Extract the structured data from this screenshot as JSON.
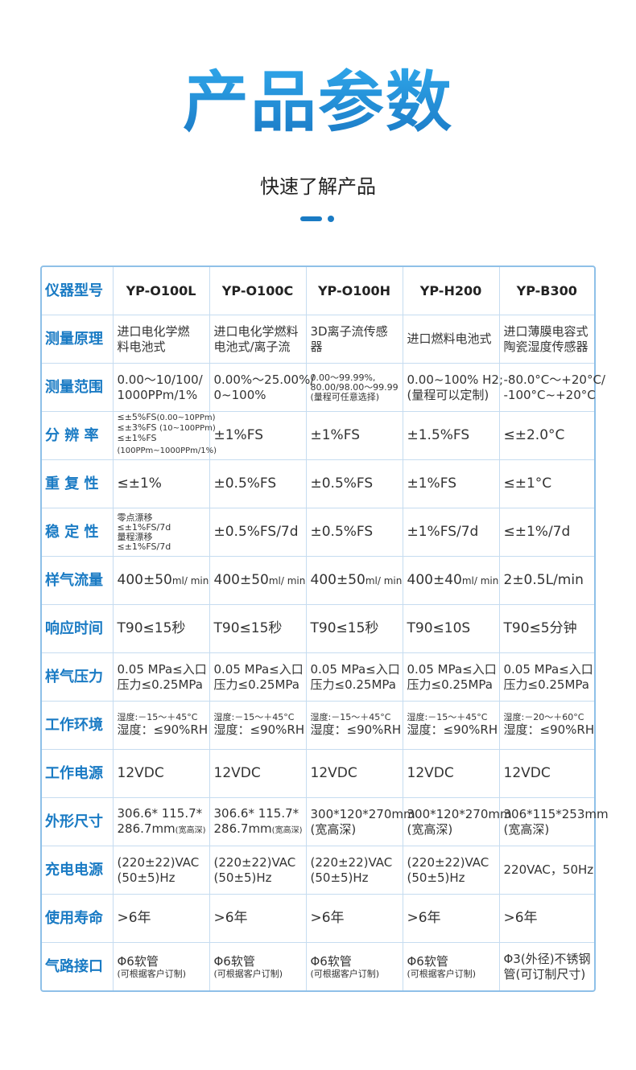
{
  "header": {
    "title": "产品参数",
    "subtitle": "快速了解产品"
  },
  "colors": {
    "accent": "#1a7bc4",
    "border": "#8fc0e8",
    "grid": "#c6dcf0"
  },
  "table": {
    "corner_label": "仪器型号",
    "models": [
      "YP-O100L",
      "YP-O100C",
      "YP-O100H",
      "YP-H200",
      "YP-B300"
    ],
    "rows": [
      {
        "label": "测量原理",
        "cells": [
          [
            [
              "进口电化学燃"
            ],
            [
              "料电池式"
            ]
          ],
          [
            [
              "进口电化学燃料"
            ],
            [
              "电池式/离子流"
            ]
          ],
          [
            [
              "3D离子流传感"
            ],
            [
              "器"
            ]
          ],
          [
            [
              "进口燃料电池式"
            ]
          ],
          [
            [
              "进口薄膜电容式"
            ],
            [
              "陶瓷湿度传感器"
            ]
          ]
        ]
      },
      {
        "label": "测量范围",
        "cells": [
          [
            [
              "0.00～10/100/"
            ],
            [
              "1000PPm/1%"
            ]
          ],
          [
            [
              "0.00%～25.00%/"
            ],
            [
              "0~100%"
            ]
          ],
          [
            [
              "0.00～99.99%,",
              "",
              "xs"
            ],
            [
              "80.00/98.00～99.99",
              "",
              "xs"
            ],
            [
              "(量程可任意选择)",
              "",
              "xs"
            ]
          ],
          [
            [
              "0.00~100% H2;"
            ],
            [
              "(量程可以定制)"
            ]
          ],
          [
            [
              "-80.0°C～+20°C/"
            ],
            [
              "-100°C~+20°C"
            ]
          ]
        ]
      },
      {
        "label": "分 辨 率",
        "cells": [
          [
            [
              "≤±5%FS",
              "(0.00~10PPm)",
              "xs"
            ],
            [
              "≤±3%FS ",
              "(10~100PPm)",
              "xs"
            ],
            [
              "≤±1%FS",
              "",
              "xs"
            ],
            [
              "(100PPm~1000PPm/1%)",
              "",
              "sm"
            ]
          ],
          [
            [
              "±1%FS",
              "",
              "big"
            ]
          ],
          [
            [
              "±1%FS",
              "",
              "big"
            ]
          ],
          [
            [
              "±1.5%FS",
              "",
              "big"
            ]
          ],
          [
            [
              "≤±2.0°C",
              "",
              "big"
            ]
          ]
        ]
      },
      {
        "label": "重 复 性",
        "cells": [
          [
            [
              "≤±1%",
              "",
              "big"
            ]
          ],
          [
            [
              "±0.5%FS",
              "",
              "big"
            ]
          ],
          [
            [
              "±0.5%FS",
              "",
              "big"
            ]
          ],
          [
            [
              "±1%FS",
              "",
              "big"
            ]
          ],
          [
            [
              "≤±1°C",
              "",
              "big"
            ]
          ]
        ]
      },
      {
        "label": "稳 定 性",
        "cells": [
          [
            [
              "零点漂移",
              "",
              "xs"
            ],
            [
              "≤±1%FS/7d",
              "",
              "xs"
            ],
            [
              "量程漂移",
              "",
              "xs"
            ],
            [
              "≤±1%FS/7d",
              "",
              "xs"
            ]
          ],
          [
            [
              "±0.5%FS/7d",
              "",
              "big"
            ]
          ],
          [
            [
              "±0.5%FS",
              "",
              "big"
            ]
          ],
          [
            [
              "±1%FS/7d",
              "",
              "big"
            ]
          ],
          [
            [
              "≤±1%/7d",
              "",
              "big"
            ]
          ]
        ]
      },
      {
        "label": "样气流量",
        "cells": [
          [
            [
              "400±50",
              "ml/ min",
              "big"
            ]
          ],
          [
            [
              "400±50",
              "ml/ min",
              "big"
            ]
          ],
          [
            [
              "400±50",
              "ml/ min",
              "big"
            ]
          ],
          [
            [
              "400±40",
              "ml/ min",
              "big"
            ]
          ],
          [
            [
              "2±0.5L/min",
              "",
              "big"
            ]
          ]
        ]
      },
      {
        "label": "响应时间",
        "cells": [
          [
            [
              "T90≤15秒",
              "",
              "big"
            ]
          ],
          [
            [
              "T90≤15秒",
              "",
              "big"
            ]
          ],
          [
            [
              "T90≤15秒",
              "",
              "big"
            ]
          ],
          [
            [
              "T90≤10S",
              "",
              "big"
            ]
          ],
          [
            [
              "T90≤5分钟",
              "",
              "big"
            ]
          ]
        ]
      },
      {
        "label": "样气压力",
        "cells": [
          [
            [
              "0.05 MPa≤入口"
            ],
            [
              "压力≤0.25MPa"
            ]
          ],
          [
            [
              "0.05 MPa≤入口"
            ],
            [
              "压力≤0.25MPa"
            ]
          ],
          [
            [
              "0.05 MPa≤入口"
            ],
            [
              "压力≤0.25MPa"
            ]
          ],
          [
            [
              "0.05 MPa≤入口"
            ],
            [
              "压力≤0.25MPa"
            ]
          ],
          [
            [
              "0.05 MPa≤入口"
            ],
            [
              "压力≤0.25MPa"
            ]
          ]
        ]
      },
      {
        "label": "工作环境",
        "cells": [
          [
            [
              "湿度:－15～＋45°C",
              "",
              "xs"
            ],
            [
              "湿度：≤90%RH"
            ]
          ],
          [
            [
              "湿度:－15～＋45°C",
              "",
              "xs"
            ],
            [
              "湿度：≤90%RH"
            ]
          ],
          [
            [
              "湿度:－15～＋45°C",
              "",
              "xs"
            ],
            [
              "湿度：≤90%RH"
            ]
          ],
          [
            [
              "湿度:－15～＋45°C",
              "",
              "xs"
            ],
            [
              "湿度：≤90%RH"
            ]
          ],
          [
            [
              "湿度:－20～＋60°C",
              "",
              "xs"
            ],
            [
              "湿度：≤90%RH"
            ]
          ]
        ]
      },
      {
        "label": "工作电源",
        "cells": [
          [
            [
              "12VDC",
              "",
              "big"
            ]
          ],
          [
            [
              "12VDC",
              "",
              "big"
            ]
          ],
          [
            [
              "12VDC",
              "",
              "big"
            ]
          ],
          [
            [
              "12VDC",
              "",
              "big"
            ]
          ],
          [
            [
              "12VDC",
              "",
              "big"
            ]
          ]
        ]
      },
      {
        "label": "外形尺寸",
        "cells": [
          [
            [
              "306.6* 115.7*"
            ],
            [
              "286.7mm",
              "(宽高深)"
            ]
          ],
          [
            [
              "306.6* 115.7*"
            ],
            [
              "286.7mm",
              "(宽高深)"
            ]
          ],
          [
            [
              "300*120*270mm"
            ],
            [
              "(宽高深)"
            ]
          ],
          [
            [
              "300*120*270mm"
            ],
            [
              "(宽高深)"
            ]
          ],
          [
            [
              "306*115*253mm"
            ],
            [
              "(宽高深)"
            ]
          ]
        ]
      },
      {
        "label": "充电电源",
        "cells": [
          [
            [
              "(220±22)VAC"
            ],
            [
              "(50±5)Hz"
            ]
          ],
          [
            [
              "(220±22)VAC"
            ],
            [
              "(50±5)Hz"
            ]
          ],
          [
            [
              "(220±22)VAC"
            ],
            [
              "(50±5)Hz"
            ]
          ],
          [
            [
              "(220±22)VAC"
            ],
            [
              "(50±5)Hz"
            ]
          ],
          [
            [
              "220VAC，50Hz"
            ]
          ]
        ]
      },
      {
        "label": "使用寿命",
        "cells": [
          [
            [
              ">6年",
              "",
              "big"
            ]
          ],
          [
            [
              ">6年",
              "",
              "big"
            ]
          ],
          [
            [
              ">6年",
              "",
              "big"
            ]
          ],
          [
            [
              ">6年",
              "",
              "big"
            ]
          ],
          [
            [
              ">6年",
              "",
              "big"
            ]
          ]
        ]
      },
      {
        "label": "气路接口",
        "cells": [
          [
            [
              "Φ6软管"
            ],
            [
              "(可根据客户订制)",
              "",
              "xs"
            ]
          ],
          [
            [
              "Φ6软管"
            ],
            [
              "(可根据客户订制)",
              "",
              "xs"
            ]
          ],
          [
            [
              "Φ6软管"
            ],
            [
              "(可根据客户订制)",
              "",
              "xs"
            ]
          ],
          [
            [
              "Φ6软管"
            ],
            [
              "(可根据客户订制)",
              "",
              "xs"
            ]
          ],
          [
            [
              "Φ3(外径)不锈钢"
            ],
            [
              "管(可订制尺寸)"
            ]
          ]
        ]
      }
    ]
  }
}
